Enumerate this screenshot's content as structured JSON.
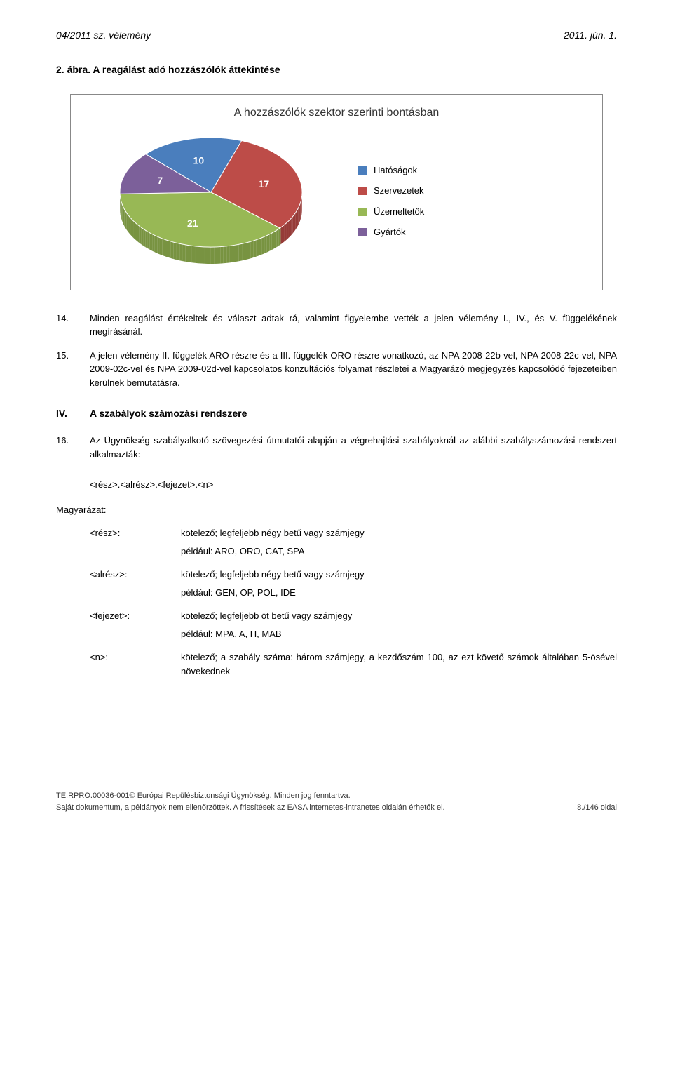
{
  "header": {
    "left": "04/2011 sz. vélemény",
    "right": "2011. jún. 1."
  },
  "section_title": "2. ábra. A reagálást adó hozzászólók áttekintése",
  "chart": {
    "title": "A hozzászólók szektor szerinti bontásban",
    "type": "pie-3d",
    "slices": [
      {
        "label": "Hatóságok",
        "value": 10,
        "color": "#4a7ebd",
        "side": "#3a649a"
      },
      {
        "label": "Szervezetek",
        "value": 17,
        "color": "#bd4c48",
        "side": "#963b38"
      },
      {
        "label": "Üzemeltetők",
        "value": 21,
        "color": "#98b855",
        "side": "#789341"
      },
      {
        "label": "Gyártók",
        "value": 7,
        "color": "#7c609a",
        "side": "#624b7a"
      }
    ],
    "label_color": "#ffffff",
    "label_fontsize": 14,
    "legend_fontsize": 13,
    "background": "#ffffff",
    "border_color": "#888888"
  },
  "paras_a": [
    {
      "n": "14.",
      "text": "Minden reagálást értékeltek és választ adtak rá, valamint figyelembe vették a jelen vélemény I., IV., és V. függelékének megírásánál."
    },
    {
      "n": "15.",
      "text": "A jelen vélemény II. függelék ARO részre és a III. függelék ORO részre vonatkozó, az NPA 2008-22b-vel, NPA 2008-22c-vel, NPA 2009-02c-vel és NPA 2009-02d-vel kapcsolatos konzultációs folyamat részletei a Magyarázó megjegyzés kapcsolódó fejezeteiben kerülnek bemutatásra."
    }
  ],
  "roman": {
    "num": "IV.",
    "title": "A szabályok számozási rendszere"
  },
  "paras_b": [
    {
      "n": "16.",
      "text": "Az Ügynökség szabályalkotó szövegezési útmutatói alapján a végrehajtási szabályoknál az alábbi szabályszámozási rendszert alkalmazták:"
    }
  ],
  "code_line": "<rész>.<alrész>.<fejezet>.<n>",
  "magyarazat_label": "Magyarázat:",
  "defs": [
    {
      "term": "<rész>:",
      "body": "kötelező; legfeljebb négy betű vagy számjegy",
      "example": "például: ARO, ORO, CAT, SPA"
    },
    {
      "term": "<alrész>:",
      "body": "kötelező; legfeljebb négy betű vagy számjegy",
      "example": "például: GEN, OP, POL, IDE"
    },
    {
      "term": "<fejezet>:",
      "body": "kötelező; legfeljebb öt betű vagy számjegy",
      "example": "például: MPA, A, H, MAB"
    },
    {
      "term": "<n>:",
      "body": "kötelező; a szabály száma: három számjegy, a kezdőszám 100, az ezt követő számok általában 5-ösével növekednek",
      "example": ""
    }
  ],
  "footer": {
    "line1": "TE.RPRO.00036-001© Európai Repülésbiztonsági Ügynökség. Minden jog fenntartva.",
    "line2": "Saját dokumentum, a példányok nem ellenőrzöttek. A frissítések az EASA internetes-intranetes oldalán érhetők el.",
    "page": "8./146 oldal"
  }
}
